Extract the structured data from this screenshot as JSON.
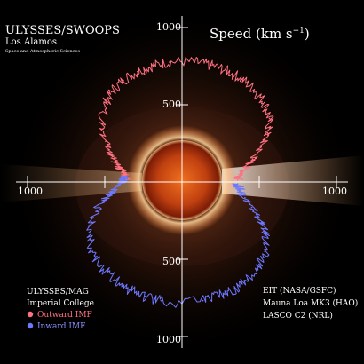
{
  "header": {
    "title": "ULYSSES/SWOOPS",
    "subtitle": "Los Alamos",
    "small": "Space and Atmospheric Sciences"
  },
  "speed_title": "Speed (km s",
  "speed_exp": "−1",
  "speed_close": ")",
  "credits_left": {
    "line1": "ULYSSES/MAG",
    "line2": "Imperial College"
  },
  "legend": [
    {
      "label": "Outward IMF",
      "color": "#ff7080"
    },
    {
      "label": "Inward IMF",
      "color": "#6e78ff"
    }
  ],
  "credits_right": [
    "EIT (NASA/GSFC)",
    "Mauna Loa MK3 (HAO)",
    "LASCO C2 (NRL)"
  ],
  "chart_data": {
    "type": "polar-line",
    "ticks": {
      "top_1000": "1000",
      "top_500": "500",
      "bottom_500": "500",
      "bottom_1000": "1000",
      "left_1000": "1000",
      "right_1000": "1000"
    },
    "radial_range": [
      0,
      1000
    ],
    "units": "km s^-1",
    "series": [
      {
        "name": "Outward IMF",
        "color": "#ff7080",
        "points": [
          [
            -88,
            360
          ],
          [
            -82,
            380
          ],
          [
            -76,
            420
          ],
          [
            -70,
            480
          ],
          [
            -62,
            560
          ],
          [
            -54,
            640
          ],
          [
            -46,
            700
          ],
          [
            -38,
            740
          ],
          [
            -30,
            760
          ],
          [
            -22,
            770
          ],
          [
            -14,
            775
          ],
          [
            -6,
            780
          ],
          [
            6,
            780
          ],
          [
            14,
            778
          ],
          [
            22,
            775
          ],
          [
            30,
            770
          ],
          [
            38,
            760
          ],
          [
            46,
            740
          ],
          [
            54,
            700
          ],
          [
            60,
            640
          ],
          [
            66,
            560
          ],
          [
            72,
            480
          ],
          [
            78,
            420
          ],
          [
            84,
            380
          ],
          [
            88,
            360
          ]
        ]
      },
      {
        "name": "Inward IMF",
        "color": "#6e78ff",
        "points": [
          [
            92,
            360
          ],
          [
            98,
            380
          ],
          [
            104,
            420
          ],
          [
            110,
            480
          ],
          [
            116,
            560
          ],
          [
            122,
            640
          ],
          [
            130,
            700
          ],
          [
            138,
            740
          ],
          [
            146,
            760
          ],
          [
            154,
            770
          ],
          [
            162,
            775
          ],
          [
            170,
            780
          ],
          [
            190,
            780
          ],
          [
            198,
            778
          ],
          [
            206,
            775
          ],
          [
            214,
            770
          ],
          [
            222,
            760
          ],
          [
            230,
            740
          ],
          [
            238,
            700
          ],
          [
            246,
            640
          ],
          [
            254,
            560
          ],
          [
            260,
            480
          ],
          [
            266,
            420
          ],
          [
            272,
            380
          ],
          [
            276,
            360
          ]
        ]
      }
    ]
  }
}
